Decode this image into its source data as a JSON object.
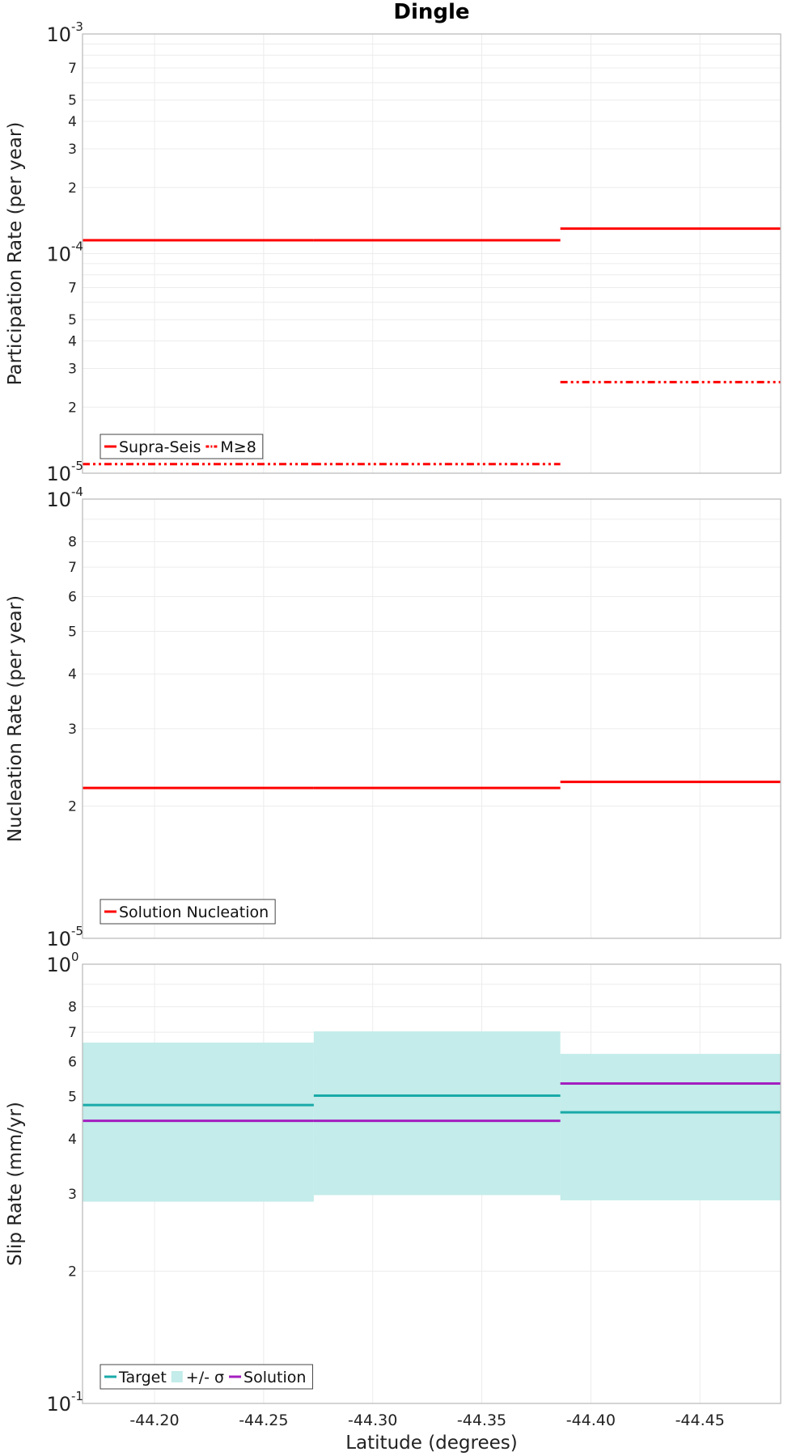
{
  "chart_data": {
    "title": "Dingle",
    "xlabel": "Latitude (degrees)",
    "xlim": [
      -44.167,
      -44.487
    ],
    "x_ticks": [
      "-44.20",
      "-44.25",
      "-44.30",
      "-44.35",
      "-44.40",
      "-44.45"
    ],
    "x_tick_values": [
      -44.2,
      -44.25,
      -44.3,
      -44.35,
      -44.4,
      -44.45
    ],
    "segments": [
      [
        -44.167,
        -44.273
      ],
      [
        -44.273,
        -44.386
      ],
      [
        -44.386,
        -44.487
      ]
    ],
    "panels": [
      {
        "type": "line",
        "ylabel": "Participation Rate (per year)",
        "yscale": "log",
        "ylim": [
          1e-05,
          0.001
        ],
        "decade_labels": [
          {
            "value": 0.001,
            "base": "10",
            "exp": "-3"
          },
          {
            "value": 0.0001,
            "base": "10",
            "exp": "-4"
          },
          {
            "value": 1e-05,
            "base": "10",
            "exp": "-5"
          }
        ],
        "minor_tick_labels": [
          "2",
          "3",
          "4",
          "5",
          "7"
        ],
        "minor_tick_values": [
          2e-05,
          3e-05,
          4e-05,
          5e-05,
          7e-05,
          0.0002,
          0.0003,
          0.0004,
          0.0005,
          0.0007
        ],
        "minor_tick_text": [
          "2",
          "3",
          "4",
          "5",
          "7",
          "2",
          "3",
          "4",
          "5",
          "7"
        ],
        "series": [
          {
            "name": "Supra-Seis",
            "color": "#ff0000",
            "dash": "solid",
            "values": [
              0.000115,
              0.000115,
              0.00013
            ]
          },
          {
            "name": "M≥8",
            "color": "#ff0000",
            "dash": "dashdotdot",
            "values": [
              1.1e-05,
              1.1e-05,
              2.6e-05
            ]
          }
        ],
        "legend": {
          "placement": "bottom-left",
          "items": [
            "Supra-Seis",
            "M≥8"
          ]
        }
      },
      {
        "type": "line",
        "ylabel": "Nucleation Rate (per year)",
        "yscale": "log",
        "ylim": [
          1e-05,
          0.0001
        ],
        "decade_labels": [
          {
            "value": 0.0001,
            "base": "10",
            "exp": "-4"
          },
          {
            "value": 1e-05,
            "base": "10",
            "exp": "-5"
          }
        ],
        "minor_tick_values": [
          2e-05,
          3e-05,
          4e-05,
          5e-05,
          6e-05,
          7e-05,
          8e-05
        ],
        "minor_tick_text": [
          "2",
          "3",
          "4",
          "5",
          "6",
          "7",
          "8"
        ],
        "series": [
          {
            "name": "Solution Nucleation",
            "color": "#ff0000",
            "dash": "solid",
            "values": [
              2.2e-05,
              2.2e-05,
              2.27e-05
            ]
          }
        ],
        "legend": {
          "placement": "bottom-left",
          "items": [
            "Solution Nucleation"
          ]
        }
      },
      {
        "type": "area",
        "ylabel": "Slip Rate (mm/yr)",
        "yscale": "log",
        "ylim": [
          0.1,
          1.0
        ],
        "decade_labels": [
          {
            "value": 1.0,
            "base": "10",
            "exp": "0"
          },
          {
            "value": 0.1,
            "base": "10",
            "exp": "-1"
          }
        ],
        "minor_tick_values": [
          0.2,
          0.3,
          0.4,
          0.5,
          0.6,
          0.7,
          0.8
        ],
        "minor_tick_text": [
          "2",
          "3",
          "4",
          "5",
          "6",
          "7",
          "8"
        ],
        "band": {
          "name": "+/- σ",
          "color": "#c3ecea",
          "lower": [
            0.288,
            0.298,
            0.29
          ],
          "upper": [
            0.663,
            0.703,
            0.625
          ]
        },
        "series": [
          {
            "name": "Target",
            "color": "#19aaa8",
            "dash": "solid",
            "values": [
              0.478,
              0.502,
              0.46
            ]
          },
          {
            "name": "Solution",
            "color": "#a31fbf",
            "dash": "solid",
            "values": [
              0.44,
              0.44,
              0.535
            ]
          }
        ],
        "legend": {
          "placement": "bottom-left",
          "items": [
            "Target",
            "+/- σ",
            "Solution"
          ]
        }
      }
    ]
  }
}
